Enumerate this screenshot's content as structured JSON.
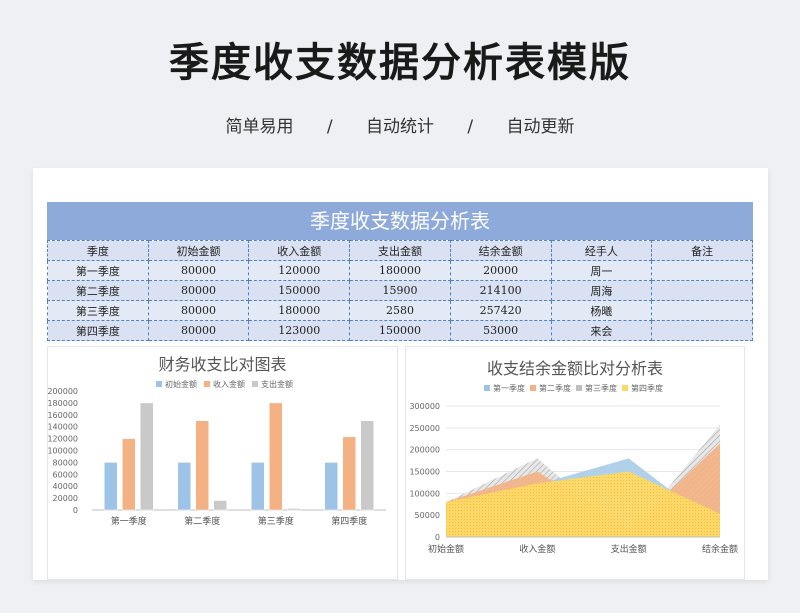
{
  "page": {
    "title": "季度收支数据分析表模版",
    "features": [
      "简单易用",
      "/",
      "自动统计",
      "/",
      "自动更新"
    ]
  },
  "sheet": {
    "title": "季度收支数据分析表",
    "headers": [
      "季度",
      "初始金额",
      "收入金额",
      "支出金额",
      "结余金额",
      "经手人",
      "备注"
    ],
    "rows": [
      [
        "第一季度",
        "80000",
        "120000",
        "180000",
        "20000",
        "周一",
        ""
      ],
      [
        "第二季度",
        "80000",
        "150000",
        "15900",
        "214100",
        "周海",
        ""
      ],
      [
        "第三季度",
        "80000",
        "180000",
        "2580",
        "257420",
        "杨曦",
        ""
      ],
      [
        "第四季度",
        "80000",
        "123000",
        "150000",
        "53000",
        "来会",
        ""
      ]
    ]
  },
  "chart_data": [
    {
      "type": "bar",
      "title": "财务收支比对图表",
      "categories": [
        "第一季度",
        "第二季度",
        "第三季度",
        "第四季度"
      ],
      "series": [
        {
          "name": "初始金额",
          "values": [
            80000,
            80000,
            80000,
            80000
          ],
          "color": "#9dc3e6"
        },
        {
          "name": "收入金额",
          "values": [
            120000,
            150000,
            180000,
            123000
          ],
          "color": "#f4b183"
        },
        {
          "name": "支出金额",
          "values": [
            180000,
            15900,
            2580,
            150000
          ],
          "color": "#c9c9c9"
        }
      ],
      "ylim": [
        0,
        200000
      ],
      "yticks": [
        0,
        20000,
        40000,
        60000,
        80000,
        100000,
        120000,
        140000,
        160000,
        180000,
        200000
      ],
      "legend": "top"
    },
    {
      "type": "area",
      "title": "收支结余金额比对分析表",
      "categories": [
        "初始金额",
        "收入金额",
        "支出金额",
        "结余金额"
      ],
      "series": [
        {
          "name": "第一季度",
          "values": [
            80000,
            120000,
            180000,
            20000
          ],
          "color": "#9dc3e6"
        },
        {
          "name": "第二季度",
          "values": [
            80000,
            150000,
            15900,
            214100
          ],
          "color": "#f4b183"
        },
        {
          "name": "第三季度",
          "values": [
            80000,
            180000,
            2580,
            257420
          ],
          "color": "#bfbfbf"
        },
        {
          "name": "第四季度",
          "values": [
            80000,
            123000,
            150000,
            53000
          ],
          "color": "#ffd966"
        }
      ],
      "ylim": [
        0,
        300000
      ],
      "yticks": [
        0,
        50000,
        100000,
        150000,
        200000,
        250000,
        300000
      ],
      "legend": "top"
    }
  ]
}
